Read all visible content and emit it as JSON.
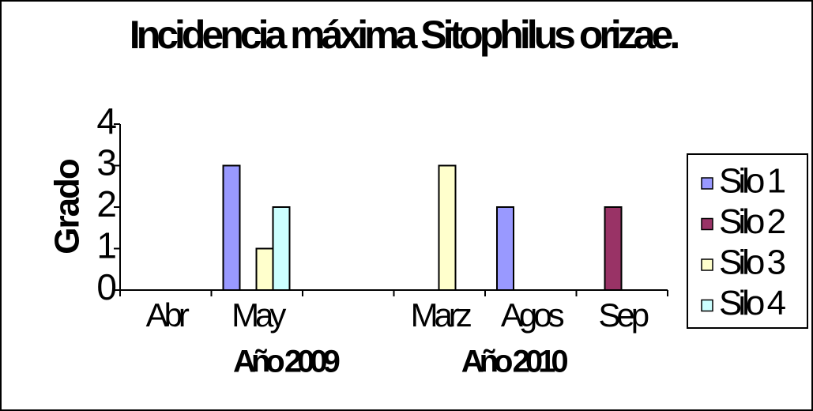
{
  "chart_data": {
    "type": "bar",
    "title": "Incidencia máxima Sitophilus orizae.",
    "y_label": "Grado",
    "categories": [
      "Abr",
      "May",
      null,
      "Marz",
      "Agos",
      "Sep"
    ],
    "group_labels": [
      "Año 2009",
      "Año 2010"
    ],
    "series": [
      {
        "name": "Silo 1",
        "color": "#9999ff",
        "values": [
          null,
          3,
          null,
          null,
          2,
          null
        ]
      },
      {
        "name": "Silo 2",
        "color": "#993366",
        "values": [
          null,
          null,
          null,
          null,
          null,
          2
        ]
      },
      {
        "name": "Silo 3",
        "color": "#ffffcc",
        "values": [
          null,
          1,
          null,
          3,
          null,
          null
        ]
      },
      {
        "name": "Silo 4",
        "color": "#ccffff",
        "values": [
          null,
          2,
          null,
          null,
          null,
          null
        ]
      }
    ],
    "ylim": [
      0,
      4
    ],
    "yticks": [
      0,
      1,
      2,
      3,
      4
    ],
    "legend": "right"
  }
}
